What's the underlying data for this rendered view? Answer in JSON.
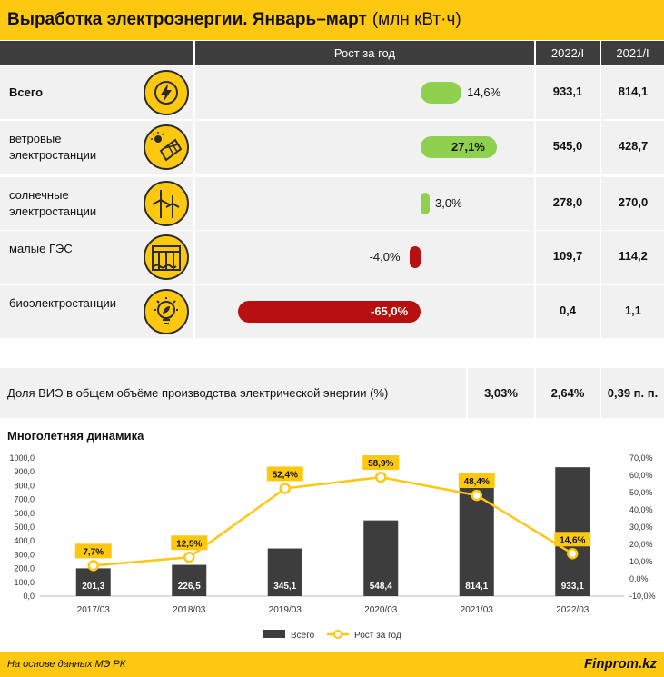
{
  "title": {
    "bold": "Выработка электроэнергии. Январь–март",
    "unit": "(млн кВт·ч)"
  },
  "table": {
    "headers": {
      "growth": "Рост за год",
      "col1": "2022/I",
      "col2": "2021/I"
    },
    "rows": [
      {
        "label": "Всего",
        "icon": "lightning-icon",
        "growth": 14.6,
        "growth_label": "14,6%",
        "v2022": "933,1",
        "v2021": "814,1",
        "color": "#8fd14f"
      },
      {
        "label": "ветровые электростанции",
        "icon": "solar-panel-icon",
        "growth": 27.1,
        "growth_label": "27,1%",
        "v2022": "545,0",
        "v2021": "428,7",
        "color": "#8fd14f"
      },
      {
        "label": "солнечные электростанции",
        "icon": "wind-turbine-icon",
        "growth": 3.0,
        "growth_label": "3,0%",
        "v2022": "278,0",
        "v2021": "270,0",
        "color": "#8fd14f"
      },
      {
        "label": "малые ГЭС",
        "icon": "dam-icon",
        "growth": -4.0,
        "growth_label": "-4,0%",
        "v2022": "109,7",
        "v2021": "114,2",
        "color": "#b81010"
      },
      {
        "label": "биоэлектростанции",
        "icon": "eco-bulb-icon",
        "growth": -65.0,
        "growth_label": "-65,0%",
        "v2022": "0,4",
        "v2021": "1,1",
        "color": "#b81010"
      }
    ]
  },
  "share": {
    "label": "Доля ВИЭ в общем объёме производства электрической энергии (%)",
    "v2022": "3,03%",
    "v2021": "2,64%",
    "diff": "0,39 п. п."
  },
  "chart_title": "Многолетняя динамика",
  "chart_data": {
    "type": "bar",
    "categories": [
      "2017/03",
      "2018/03",
      "2019/03",
      "2020/03",
      "2021/03",
      "2022/03"
    ],
    "series": [
      {
        "name": "Всего",
        "type": "bar",
        "values": [
          201.3,
          226.5,
          345.1,
          548.4,
          814.1,
          933.1
        ],
        "labels": [
          "201,3",
          "226,5",
          "345,1",
          "548,4",
          "814,1",
          "933,1"
        ],
        "color": "#3d3d3d"
      },
      {
        "name": "Рост за год",
        "type": "line",
        "values": [
          7.7,
          12.5,
          52.4,
          58.9,
          48.4,
          14.6
        ],
        "labels": [
          "7,7%",
          "12,5%",
          "52,4%",
          "58,9%",
          "48,4%",
          "14,6%"
        ],
        "color": "#fdc80f"
      }
    ],
    "y_left": {
      "min": 0,
      "max": 1000,
      "step": 100,
      "ticks": [
        "0,0",
        "100,0",
        "200,0",
        "300,0",
        "400,0",
        "500,0",
        "600,0",
        "700,0",
        "800,0",
        "900,0",
        "1000,0"
      ]
    },
    "y_right": {
      "min": -10,
      "max": 70,
      "step": 10,
      "ticks": [
        "-10,0%",
        "0,0%",
        "10,0%",
        "20,0%",
        "30,0%",
        "40,0%",
        "50,0%",
        "60,0%",
        "70,0%"
      ]
    },
    "legend_position": "bottom",
    "grid": false
  },
  "footer": {
    "source": "На основе данных МЭ РК",
    "brand": "Finprom.kz"
  }
}
